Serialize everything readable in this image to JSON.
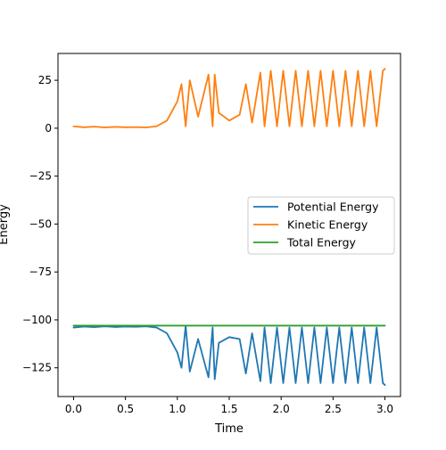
{
  "chart_data": {
    "type": "line",
    "title": "",
    "xlabel": "Time",
    "ylabel": "Energy",
    "xlim": [
      -0.15,
      3.15
    ],
    "ylim": [
      -140,
      39
    ],
    "xticks": [
      0.0,
      0.5,
      1.0,
      1.5,
      2.0,
      2.5,
      3.0
    ],
    "xtick_labels": [
      "0.0",
      "0.5",
      "1.0",
      "1.5",
      "2.0",
      "2.5",
      "3.0"
    ],
    "yticks": [
      25,
      0,
      -25,
      -50,
      -75,
      -100,
      -125
    ],
    "ytick_labels": [
      "25",
      "0",
      "−25",
      "−50",
      "−75",
      "−100",
      "−125"
    ],
    "grid": false,
    "legend_position": "center-right",
    "x": [
      0.0,
      0.1,
      0.2,
      0.3,
      0.4,
      0.5,
      0.6,
      0.7,
      0.8,
      0.9,
      1.0,
      1.04,
      1.08,
      1.12,
      1.2,
      1.3,
      1.34,
      1.36,
      1.4,
      1.5,
      1.6,
      1.66,
      1.72,
      1.8,
      1.84,
      1.9,
      1.96,
      2.02,
      2.08,
      2.14,
      2.2,
      2.26,
      2.32,
      2.38,
      2.44,
      2.5,
      2.56,
      2.62,
      2.68,
      2.74,
      2.8,
      2.86,
      2.92,
      2.98,
      3.0
    ],
    "series": [
      {
        "name": "Potential Energy",
        "color": "#1f77b4",
        "values": [
          -104,
          -103.5,
          -103.8,
          -103.4,
          -103.7,
          -103.5,
          -103.6,
          -103.4,
          -104,
          -107,
          -117,
          -125,
          -103,
          -127,
          -110,
          -130,
          -104,
          -131,
          -112,
          -109,
          -110,
          -128,
          -107,
          -132,
          -104,
          -133,
          -104,
          -133,
          -104,
          -133,
          -104,
          -133,
          -104,
          -133,
          -104,
          -133,
          -104,
          -133,
          -104,
          -133,
          -104,
          -133,
          -104,
          -133,
          -134
        ]
      },
      {
        "name": "Kinetic Energy",
        "color": "#ff7f0e",
        "values": [
          1,
          0.5,
          0.8,
          0.4,
          0.7,
          0.5,
          0.6,
          0.4,
          1,
          4,
          14,
          23,
          1,
          25,
          6,
          28,
          1,
          28,
          8,
          4,
          7,
          23,
          3,
          29,
          1,
          30,
          1,
          30,
          1,
          30,
          1,
          30,
          1,
          30,
          1,
          30,
          1,
          30,
          1,
          30,
          1,
          30,
          1,
          30,
          31
        ]
      },
      {
        "name": "Total Energy",
        "color": "#2ca02c",
        "values": [
          -103,
          -103,
          -103,
          -103,
          -103,
          -103,
          -103,
          -103,
          -103,
          -103,
          -103,
          -103,
          -103,
          -103,
          -103,
          -103,
          -103,
          -103,
          -103,
          -103,
          -103,
          -103,
          -103,
          -103,
          -103,
          -103,
          -103,
          -103,
          -103,
          -103,
          -103,
          -103,
          -103,
          -103,
          -103,
          -103,
          -103,
          -103,
          -103,
          -103,
          -103,
          -103,
          -103,
          -103,
          -103
        ]
      }
    ]
  }
}
